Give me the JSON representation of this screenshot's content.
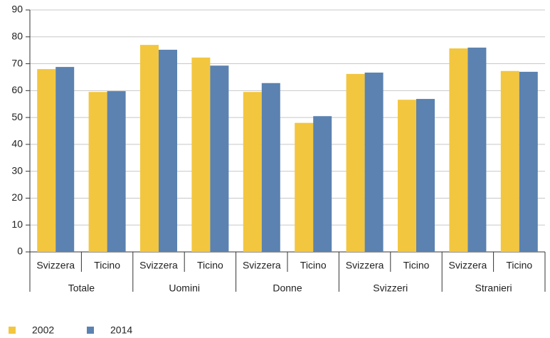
{
  "chart_data": {
    "type": "bar",
    "categories": [
      "Svizzera",
      "Ticino",
      "Svizzera",
      "Ticino",
      "Svizzera",
      "Ticino",
      "Svizzera",
      "Ticino",
      "Svizzera",
      "Ticino"
    ],
    "groups": [
      "Totale",
      "Uomini",
      "Donne",
      "Svizzeri",
      "Stranieri"
    ],
    "series": [
      {
        "name": "2002",
        "color": "#f3c63f",
        "values": [
          68,
          59.5,
          77,
          72.3,
          59.5,
          48,
          66.2,
          56.6,
          75.7,
          67.3
        ]
      },
      {
        "name": "2014",
        "color": "#5b82b0",
        "values": [
          68.8,
          59.8,
          75.2,
          69.3,
          62.8,
          50.5,
          66.7,
          56.9,
          76,
          67
        ]
      }
    ],
    "ylim": [
      0,
      90
    ],
    "yticks": [
      0,
      10,
      20,
      30,
      40,
      50,
      60,
      70,
      80,
      90
    ],
    "grid": true
  }
}
